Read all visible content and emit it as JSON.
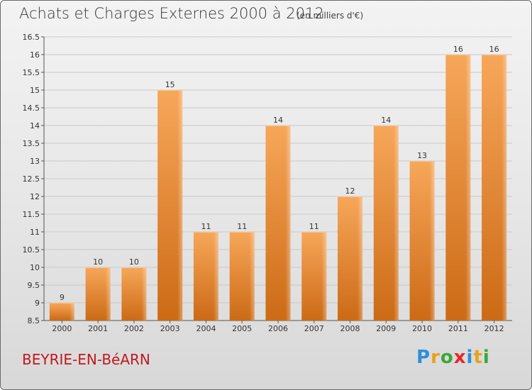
{
  "header": {
    "title": "Achats et Charges Externes 2000 à 2012",
    "subtitle": "(en milliers d'€)"
  },
  "footer": {
    "commune": "BEYRIE-EN-BéARN",
    "logo_letters": [
      "P",
      "r",
      "o",
      "x",
      "i",
      "t",
      "i"
    ],
    "logo_colors": [
      "#2f8fd8",
      "#e8a21a",
      "#3aa83a",
      "#e8262c",
      "#2f8fd8",
      "#e8a21a",
      "#3aa83a"
    ]
  },
  "colors": {
    "bar_top": "#f7a75a",
    "bar_bottom": "#cc6a15",
    "bar_highlight": "#fbc48e",
    "grid": "#c9c9c9",
    "title_red": "#c0191f"
  },
  "chart_data": {
    "type": "bar",
    "title": "Achats et Charges Externes 2000 à 2012",
    "xlabel": "",
    "ylabel": "",
    "categories": [
      "2000",
      "2001",
      "2002",
      "2003",
      "2004",
      "2005",
      "2006",
      "2007",
      "2008",
      "2009",
      "2010",
      "2011",
      "2012"
    ],
    "values": [
      9,
      10,
      10,
      15,
      11,
      11,
      14,
      11,
      12,
      14,
      13,
      16,
      16
    ],
    "data_labels": [
      "9",
      "10",
      "10",
      "15",
      "11",
      "11",
      "14",
      "11",
      "12",
      "14",
      "13",
      "16",
      "16"
    ],
    "ylim": [
      8.5,
      16.5
    ],
    "yticks": [
      8.5,
      9,
      9.5,
      10,
      10.5,
      11,
      11.5,
      12,
      12.5,
      13,
      13.5,
      14,
      14.5,
      15,
      15.5,
      16,
      16.5
    ],
    "ytick_labels": [
      "8.5",
      "9",
      "9.5",
      "10",
      "10.5",
      "11",
      "11.5",
      "12",
      "12.5",
      "13",
      "13.5",
      "14",
      "14.5",
      "15",
      "15.5",
      "16",
      "16.5"
    ],
    "grid": true,
    "legend": "none"
  }
}
